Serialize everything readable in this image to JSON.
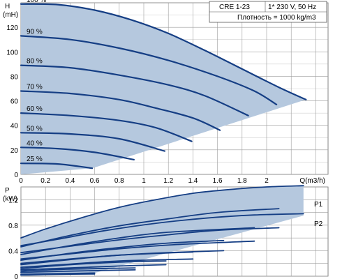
{
  "header": {
    "model": "CRE 1-23",
    "supply": "1* 230 V, 50 Hz",
    "density": "Плотность = 1000 kg/m3"
  },
  "chart_data": [
    {
      "type": "line",
      "name": "head",
      "ylabel_top": "H",
      "yunit": "(mH)",
      "xlabel": "Q(m3/h)",
      "xlim": [
        0,
        2.5
      ],
      "ylim": [
        0,
        140
      ],
      "x_ticks": [
        "0",
        "0.2",
        "0.4",
        "0.6",
        "0.8",
        "1",
        "1.2",
        "1.4",
        "1.6",
        "1.8",
        "2",
        "Q(m3/h)"
      ],
      "y_ticks": [
        "0",
        "20",
        "40",
        "60",
        "80",
        "100",
        "120"
      ],
      "grid": true,
      "envelope": [
        [
          0,
          0
        ],
        [
          0,
          140
        ],
        [
          0.3,
          138.5
        ],
        [
          0.6,
          134
        ],
        [
          0.9,
          126
        ],
        [
          1.2,
          115
        ],
        [
          1.5,
          101
        ],
        [
          1.8,
          86
        ],
        [
          2.1,
          71
        ],
        [
          2.32,
          61
        ],
        [
          0.58,
          5
        ],
        [
          0,
          0
        ]
      ],
      "series": [
        {
          "label": "100 %",
          "points": [
            [
              0,
              139
            ],
            [
              0.3,
              138.5
            ],
            [
              0.6,
              134
            ],
            [
              0.9,
              126
            ],
            [
              1.2,
              115
            ],
            [
              1.5,
              101
            ],
            [
              1.8,
              86
            ],
            [
              2.1,
              71
            ],
            [
              2.32,
              61
            ]
          ]
        },
        {
          "label": "90 %",
          "points": [
            [
              0,
              113
            ],
            [
              0.4,
              110
            ],
            [
              0.8,
              103
            ],
            [
              1.2,
              93
            ],
            [
              1.6,
              80
            ],
            [
              1.9,
              68
            ],
            [
              2.08,
              57
            ]
          ]
        },
        {
          "label": "80 %",
          "points": [
            [
              0,
              89
            ],
            [
              0.4,
              87
            ],
            [
              0.8,
              81
            ],
            [
              1.2,
              73
            ],
            [
              1.5,
              64
            ],
            [
              1.85,
              48
            ]
          ]
        },
        {
          "label": "70 %",
          "points": [
            [
              0,
              68
            ],
            [
              0.4,
              66
            ],
            [
              0.8,
              61
            ],
            [
              1.1,
              54
            ],
            [
              1.4,
              46
            ],
            [
              1.62,
              36
            ]
          ]
        },
        {
          "label": "60 %",
          "points": [
            [
              0,
              50
            ],
            [
              0.4,
              48
            ],
            [
              0.8,
              44
            ],
            [
              1.1,
              38
            ],
            [
              1.39,
              27
            ]
          ]
        },
        {
          "label": "50 %",
          "points": [
            [
              0,
              34
            ],
            [
              0.4,
              33
            ],
            [
              0.8,
              29
            ],
            [
              1.17,
              19
            ]
          ]
        },
        {
          "label": "40 %",
          "points": [
            [
              0,
              22
            ],
            [
              0.3,
              21
            ],
            [
              0.6,
              18
            ],
            [
              0.92,
              12
            ]
          ]
        },
        {
          "label": "25 %",
          "points": [
            [
              0,
              9
            ],
            [
              0.3,
              8.5
            ],
            [
              0.58,
              5
            ]
          ]
        }
      ]
    },
    {
      "type": "line",
      "name": "power",
      "ylabel_top": "P",
      "yunit": "(kW)",
      "xlim": [
        0,
        2.5
      ],
      "ylim": [
        0,
        1.4
      ],
      "y_ticks": [
        "0",
        "0.4",
        "0.8",
        "1.2"
      ],
      "grid": true,
      "envelope": [
        [
          0,
          0.6
        ],
        [
          0.2,
          0.74
        ],
        [
          0.5,
          0.92
        ],
        [
          0.8,
          1.08
        ],
        [
          1.1,
          1.2
        ],
        [
          1.4,
          1.3
        ],
        [
          1.7,
          1.36
        ],
        [
          2,
          1.4
        ],
        [
          2.3,
          1.42
        ],
        [
          2.3,
          0.95
        ],
        [
          0.6,
          0.05
        ],
        [
          0,
          0
        ]
      ],
      "series_labels": [
        "P1",
        "P2"
      ],
      "series": [
        {
          "label": "P1 100 %",
          "points": [
            [
              0,
              0.6
            ],
            [
              0.2,
              0.74
            ],
            [
              0.5,
              0.92
            ],
            [
              0.8,
              1.08
            ],
            [
              1.1,
              1.2
            ],
            [
              1.4,
              1.3
            ],
            [
              1.7,
              1.36
            ],
            [
              2,
              1.4
            ],
            [
              2.3,
              1.42
            ]
          ]
        },
        {
          "label": "P2 100 %",
          "points": [
            [
              0,
              0.48
            ],
            [
              0.3,
              0.58
            ],
            [
              0.7,
              0.72
            ],
            [
              1.1,
              0.83
            ],
            [
              1.5,
              0.91
            ],
            [
              1.9,
              0.96
            ],
            [
              2.3,
              0.98
            ]
          ]
        },
        {
          "label": "P1 90 %",
          "points": [
            [
              0,
              0.46
            ],
            [
              0.4,
              0.64
            ],
            [
              0.8,
              0.79
            ],
            [
              1.2,
              0.9
            ],
            [
              1.6,
              1.0
            ],
            [
              2.1,
              1.06
            ]
          ]
        },
        {
          "label": "P2 90 %",
          "points": [
            [
              0,
              0.37
            ],
            [
              0.4,
              0.47
            ],
            [
              0.8,
              0.57
            ],
            [
              1.2,
              0.65
            ],
            [
              1.6,
              0.72
            ],
            [
              2.1,
              0.76
            ]
          ]
        },
        {
          "label": "P1 80 %",
          "points": [
            [
              0,
              0.34
            ],
            [
              0.4,
              0.48
            ],
            [
              0.8,
              0.6
            ],
            [
              1.2,
              0.69
            ],
            [
              1.9,
              0.76
            ]
          ]
        },
        {
          "label": "P2 80 %",
          "points": [
            [
              0,
              0.27
            ],
            [
              0.4,
              0.35
            ],
            [
              0.8,
              0.43
            ],
            [
              1.3,
              0.5
            ],
            [
              1.9,
              0.55
            ]
          ]
        },
        {
          "label": "P1 70 %",
          "points": [
            [
              0,
              0.25
            ],
            [
              0.4,
              0.36
            ],
            [
              0.8,
              0.45
            ],
            [
              1.2,
              0.52
            ],
            [
              1.65,
              0.56
            ]
          ]
        },
        {
          "label": "P2 70 %",
          "points": [
            [
              0,
              0.2
            ],
            [
              0.4,
              0.27
            ],
            [
              0.8,
              0.33
            ],
            [
              1.2,
              0.37
            ],
            [
              1.65,
              0.4
            ]
          ]
        },
        {
          "label": "P1 60 %",
          "points": [
            [
              0,
              0.18
            ],
            [
              0.4,
              0.26
            ],
            [
              0.8,
              0.33
            ],
            [
              1.4,
              0.38
            ]
          ]
        },
        {
          "label": "P2 60 %",
          "points": [
            [
              0,
              0.14
            ],
            [
              0.4,
              0.19
            ],
            [
              0.8,
              0.24
            ],
            [
              1.4,
              0.27
            ]
          ]
        },
        {
          "label": "P1 50 %",
          "points": [
            [
              0,
              0.12
            ],
            [
              0.4,
              0.18
            ],
            [
              0.8,
              0.22
            ],
            [
              1.18,
              0.24
            ]
          ]
        },
        {
          "label": "P2 50 %",
          "points": [
            [
              0,
              0.1
            ],
            [
              0.4,
              0.13
            ],
            [
              0.8,
              0.16
            ],
            [
              1.18,
              0.18
            ]
          ]
        },
        {
          "label": "P1 40 %",
          "points": [
            [
              0,
              0.08
            ],
            [
              0.4,
              0.11
            ],
            [
              0.93,
              0.13
            ]
          ]
        },
        {
          "label": "P2 40 %",
          "points": [
            [
              0,
              0.06
            ],
            [
              0.4,
              0.08
            ],
            [
              0.93,
              0.1
            ]
          ]
        },
        {
          "label": "P1 25 %",
          "points": [
            [
              0,
              0.03
            ],
            [
              0.3,
              0.04
            ],
            [
              0.6,
              0.05
            ]
          ]
        },
        {
          "label": "P2 25 %",
          "points": [
            [
              0,
              0.02
            ],
            [
              0.3,
              0.03
            ],
            [
              0.6,
              0.035
            ]
          ]
        }
      ]
    }
  ]
}
